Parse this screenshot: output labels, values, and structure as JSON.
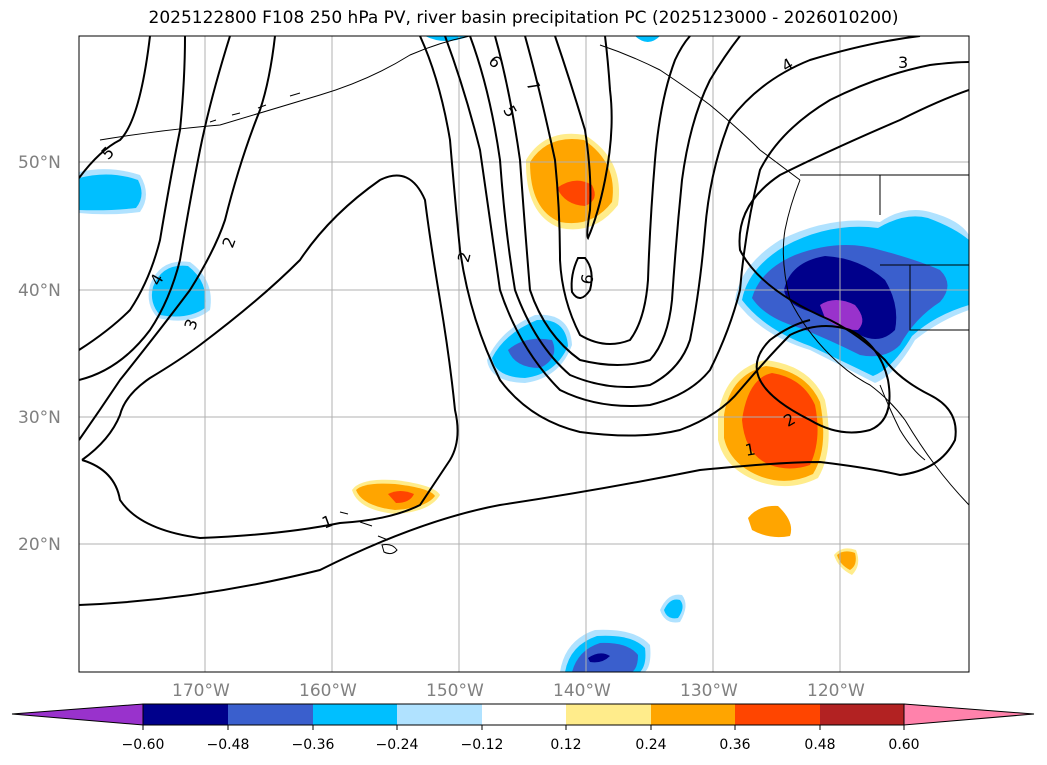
{
  "title": "2025122800 F108 250 hPa PV, river basin precipitation PC (2025123000 - 2026010200)",
  "lat_labels": [
    "50°N",
    "40°N",
    "30°N",
    "20°N"
  ],
  "lon_labels": [
    "170°W",
    "160°W",
    "150°W",
    "140°W",
    "130°W",
    "120°W"
  ],
  "contour_labels": [
    "5",
    "4",
    "3",
    "2",
    "6",
    "7",
    "5",
    "2",
    "6",
    "4",
    "3",
    "2",
    "1",
    "1"
  ],
  "colorbar": {
    "tick_labels": [
      "−0.60",
      "−0.48",
      "−0.36",
      "−0.24",
      "−0.12",
      "0.12",
      "0.24",
      "0.36",
      "0.48",
      "0.60"
    ],
    "colors": [
      "#9932cc",
      "#00008b",
      "#3a5fcd",
      "#00bfff",
      "#b0e2ff",
      "#ffffff",
      "#ffec8b",
      "#ffa500",
      "#ff4500",
      "#b22222",
      "#ff82ab"
    ]
  },
  "fill_colors": {
    "neg1": "#b0e2ff",
    "neg2": "#00bfff",
    "neg3": "#3a5fcd",
    "neg4": "#00008b",
    "neg5": "#9932cc",
    "pos1": "#ffec8b",
    "pos2": "#ffa500",
    "pos3": "#ff4500"
  }
}
